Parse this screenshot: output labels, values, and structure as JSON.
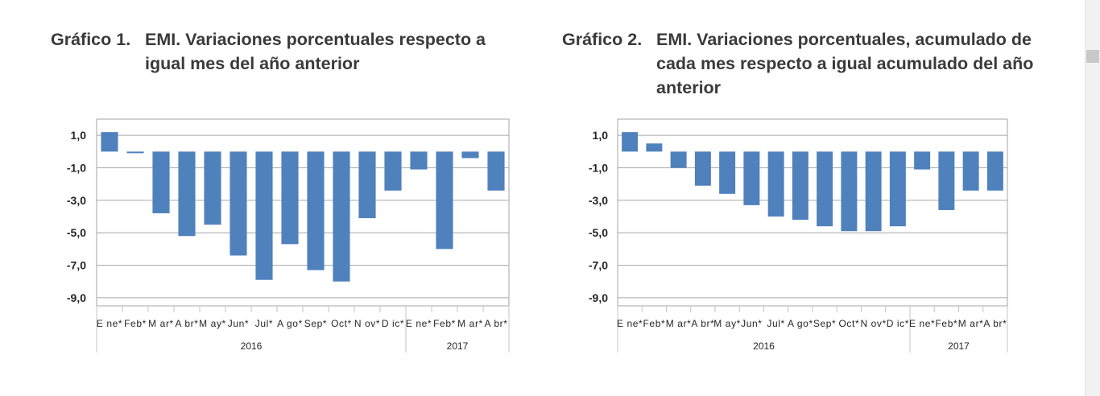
{
  "charts": [
    {
      "number": "Gráfico 1.",
      "title": "EMI. Variaciones porcentuales respecto a igual mes del año anterior"
    },
    {
      "number": "Gráfico 2.",
      "title": "EMI. Variaciones porcentuales, acumulado de cada mes respecto a igual acumulado del año anterior"
    }
  ],
  "chart_data": [
    {
      "type": "bar",
      "title": "EMI. Variaciones porcentuales respecto a igual mes del año anterior",
      "categories": [
        "Ene*",
        "Feb*",
        "Mar*",
        "Abr*",
        "May*",
        "Jun*",
        "Jul*",
        "Ago*",
        "Sep*",
        "Oct*",
        "Nov*",
        "Dic*",
        "Ene*",
        "Feb*",
        "Mar*",
        "Abr*"
      ],
      "category_labels": [
        "E ne*",
        "Feb*",
        "M ar*",
        "A br*",
        "M ay*",
        "Jun*",
        "Jul*",
        "A go*",
        "Sep*",
        "Oct*",
        "N ov*",
        "D ic*",
        "E ne*",
        "Feb*",
        "M ar*",
        "A br*"
      ],
      "groups": [
        {
          "label": "2016",
          "count": 12
        },
        {
          "label": "2017",
          "count": 4
        }
      ],
      "values": [
        1.2,
        -0.1,
        -3.8,
        -5.2,
        -4.5,
        -6.4,
        -7.9,
        -5.7,
        -7.3,
        -8.0,
        -4.1,
        -2.4,
        -1.1,
        -6.0,
        -0.4,
        -2.4
      ],
      "yticks": [
        "1,0",
        "-1,0",
        "-3,0",
        "-5,0",
        "-7,0",
        "-9,0"
      ],
      "ylim": [
        -9.5,
        2.0
      ],
      "grid": true,
      "bar_color": "#4f81bd"
    },
    {
      "type": "bar",
      "title": "EMI. Variaciones porcentuales, acumulado de cada mes respecto a igual acumulado del año anterior",
      "categories": [
        "Ene*",
        "Feb*",
        "Mar*",
        "Abr*",
        "May*",
        "Jun*",
        "Jul*",
        "Ago*",
        "Sep*",
        "Oct*",
        "Nov*",
        "Dic*",
        "Ene*",
        "Feb*",
        "Mar*",
        "Abr*"
      ],
      "category_labels": [
        "E ne*",
        "Feb*",
        "M ar*",
        "A br*",
        "M ay*",
        "Jun*",
        "Jul*",
        "A go*",
        "Sep*",
        "Oct*",
        "N ov*",
        "D ic*",
        "E ne*",
        "Feb*",
        "M ar*",
        "A br*"
      ],
      "groups": [
        {
          "label": "2016",
          "count": 12
        },
        {
          "label": "2017",
          "count": 4
        }
      ],
      "values": [
        1.2,
        0.5,
        -1.0,
        -2.1,
        -2.6,
        -3.3,
        -4.0,
        -4.2,
        -4.6,
        -4.9,
        -4.9,
        -4.6,
        -1.1,
        -3.6,
        -2.4,
        -2.4
      ],
      "yticks": [
        "1,0",
        "-1,0",
        "-3,0",
        "-5,0",
        "-7,0",
        "-9,0"
      ],
      "ylim": [
        -9.5,
        2.0
      ],
      "grid": true,
      "bar_color": "#4f81bd"
    }
  ]
}
